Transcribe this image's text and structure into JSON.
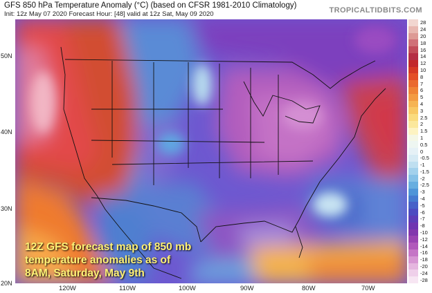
{
  "header": {
    "title": "GFS 850 hPa Temperature Anomaly (°C) (based on CFSR 1981-2010 Climatology)",
    "subtitle": "Init: 12z May 07 2020   Forecast Hour: [48]   valid at 12z Sat, May 09 2020",
    "brand": "TROPICALTIDBITS.COM"
  },
  "caption": "12Z GFS forecast map of 850 mb temperature anomalies as of 8AM, Saturday, May 9th",
  "lat_labels": [
    "50N",
    "40N",
    "30N",
    "20N"
  ],
  "lon_labels": [
    "120W",
    "110W",
    "100W",
    "90W",
    "80W",
    "70W"
  ],
  "colorbar": {
    "labels": [
      "28",
      "24",
      "20",
      "18",
      "16",
      "14",
      "12",
      "10",
      "8",
      "7",
      "6",
      "5",
      "4",
      "3",
      "2.5",
      "2",
      "1.5",
      "1",
      "0.5",
      "0",
      "-0.5",
      "-1",
      "-1.5",
      "-2",
      "-2.5",
      "-3",
      "-4",
      "-5",
      "-6",
      "-7",
      "-8",
      "-10",
      "-12",
      "-14",
      "-16",
      "-18",
      "-20",
      "-24",
      "-28"
    ],
    "colors": [
      "#f2d6d0",
      "#e8b7b0",
      "#dd9a95",
      "#d07078",
      "#c24c5a",
      "#b52e46",
      "#c2292c",
      "#d63a25",
      "#e44f27",
      "#ea6a2f",
      "#ef8436",
      "#f39b42",
      "#f6b453",
      "#f8c864",
      "#fadb7d",
      "#fbe89c",
      "#fdf3c2",
      "#f4f7e6",
      "#eef6f1",
      "#e6f1f6",
      "#d6eaf4",
      "#bfdff0",
      "#a3d1ec",
      "#86c1e7",
      "#67aee0",
      "#4f95d8",
      "#467bd0",
      "#4761c8",
      "#4d4cc1",
      "#5d3eb8",
      "#6f35b1",
      "#8238ad",
      "#9a44b2",
      "#b159bb",
      "#c575c6",
      "#d796d3",
      "#e5b6df",
      "#efd0ea",
      "#f7e6f3"
    ]
  }
}
